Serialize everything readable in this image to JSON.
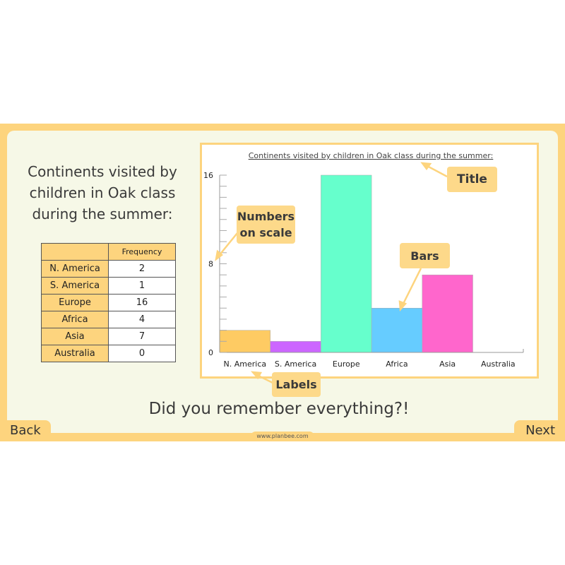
{
  "slide": {
    "heading": "Continents visited by children in Oak class during the summer:",
    "question": "Did you remember everything?!",
    "back_label": "Back",
    "next_label": "Next",
    "website": "www.planbee.com"
  },
  "table": {
    "header": [
      "",
      "Frequency"
    ],
    "rows": [
      {
        "label": "N. America",
        "value": "2"
      },
      {
        "label": "S. America",
        "value": "1"
      },
      {
        "label": "Europe",
        "value": "16"
      },
      {
        "label": "Africa",
        "value": "4"
      },
      {
        "label": "Asia",
        "value": "7"
      },
      {
        "label": "Australia",
        "value": "0"
      }
    ]
  },
  "callouts": {
    "title": "Title",
    "numbers": "Numbers on scale",
    "bars": "Bars",
    "labels": "Labels"
  },
  "chart_data": {
    "type": "bar",
    "title": "Continents visited by children in Oak class during the summer:",
    "categories": [
      "N. America",
      "S. America",
      "Europe",
      "Africa",
      "Asia",
      "Australia"
    ],
    "values": [
      2,
      1,
      16,
      4,
      7,
      0
    ],
    "colors": [
      "#fecb63",
      "#cc66ff",
      "#66ffcc",
      "#66ccff",
      "#ff66cc",
      "#cccccc"
    ],
    "yticks": [
      0,
      8,
      16
    ],
    "ylim": [
      0,
      16
    ],
    "minor_tick_step": 1,
    "xlabel": "",
    "ylabel": "",
    "grid": false
  },
  "colors": {
    "accent": "#fdd47e",
    "background": "#f6f8e7"
  }
}
